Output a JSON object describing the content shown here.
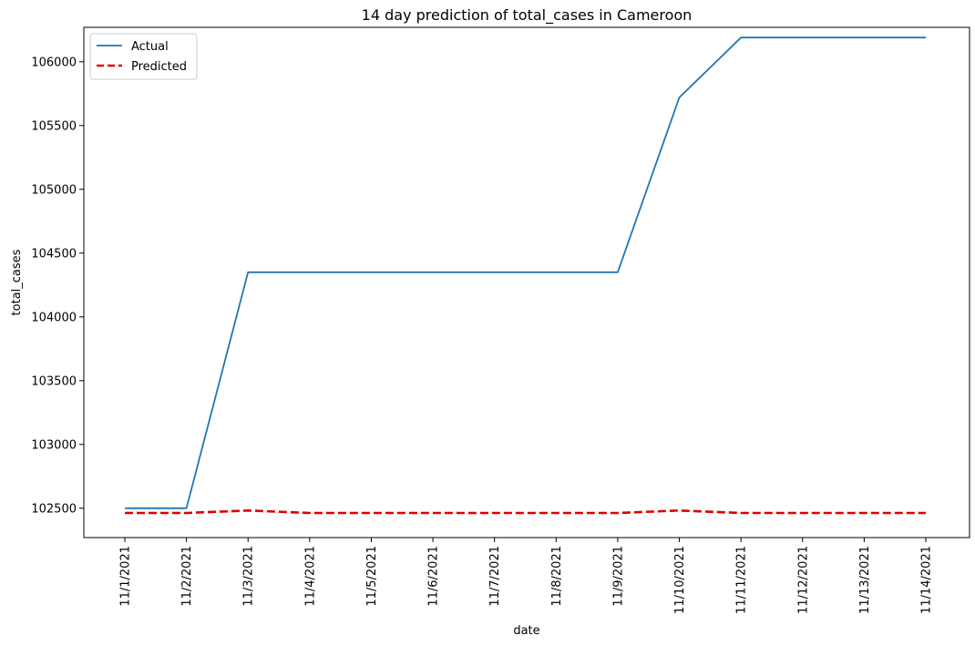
{
  "chart_data": {
    "type": "line",
    "title": "14 day prediction of total_cases in Cameroon",
    "xlabel": "date",
    "ylabel": "total_cases",
    "categories": [
      "11/1/2021",
      "11/2/2021",
      "11/3/2021",
      "11/4/2021",
      "11/5/2021",
      "11/6/2021",
      "11/7/2021",
      "11/8/2021",
      "11/9/2021",
      "11/10/2021",
      "11/11/2021",
      "11/12/2021",
      "11/13/2021",
      "11/14/2021"
    ],
    "ylim": [
      102270,
      106270
    ],
    "yticks": [
      102500,
      103000,
      103500,
      104000,
      104500,
      105000,
      105500,
      106000
    ],
    "grid": false,
    "legend_position": "top-left",
    "series": [
      {
        "name": "Actual",
        "color": "#1f77b4",
        "style": "solid",
        "values": [
          102500,
          102500,
          104350,
          104350,
          104350,
          104350,
          104350,
          104350,
          104350,
          105720,
          106190,
          106190,
          106190,
          106190
        ]
      },
      {
        "name": "Predicted",
        "color": "#e00000",
        "style": "dashed",
        "values": [
          102463,
          102463,
          102482,
          102463,
          102463,
          102463,
          102463,
          102463,
          102463,
          102482,
          102463,
          102463,
          102463,
          102463
        ]
      }
    ]
  }
}
